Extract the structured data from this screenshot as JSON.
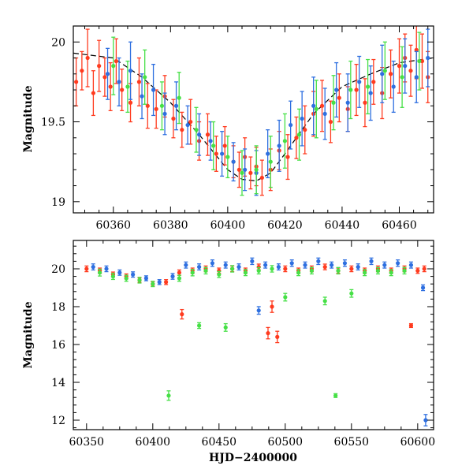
{
  "chart_data": [
    {
      "type": "scatter",
      "panel": "top",
      "xlabel": "",
      "ylabel": "Magnitude",
      "xlim": [
        60346,
        60472
      ],
      "ylim": [
        20.1,
        18.93
      ],
      "y_inverted": true,
      "x_ticks": [
        60360,
        60380,
        60400,
        60420,
        60440,
        60460
      ],
      "x_tick_labels": [
        "60360",
        "60380",
        "60400",
        "60420",
        "60440",
        "60460"
      ],
      "y_ticks": [
        19,
        19.5,
        20
      ],
      "y_tick_labels": [
        "19",
        "19.5",
        "20"
      ],
      "grid": false,
      "legend": "none",
      "model_curve": {
        "style": "dashed",
        "color": "#000000",
        "x": [
          60346,
          60360,
          60370,
          60380,
          60390,
          60400,
          60405,
          60410,
          60415,
          60420,
          60430,
          60440,
          60450,
          60460,
          60472
        ],
        "y": [
          19.93,
          19.9,
          19.78,
          19.62,
          19.42,
          19.2,
          19.14,
          19.13,
          19.18,
          19.3,
          19.55,
          19.72,
          19.8,
          19.87,
          19.9
        ]
      },
      "series": [
        {
          "color": "#ff3b1f",
          "x": [
            60347,
            60349,
            60351,
            60353,
            60355,
            60357,
            60359,
            60361,
            60363,
            60366,
            60369,
            60372,
            60375,
            60378,
            60381,
            60384,
            60387,
            60390,
            60393,
            60396,
            60399,
            60402,
            60404,
            60406,
            60408,
            60410,
            60412,
            60415,
            60418,
            60421,
            60424,
            60427,
            60430,
            60433,
            60436,
            60439,
            60442,
            60445,
            60448,
            60451,
            60454,
            60457,
            60460,
            60462,
            60464,
            60466,
            60468,
            60470
          ],
          "y": [
            19.75,
            19.82,
            19.9,
            19.68,
            19.85,
            19.78,
            19.72,
            19.88,
            19.7,
            19.62,
            19.75,
            19.6,
            19.58,
            19.66,
            19.52,
            19.45,
            19.5,
            19.38,
            19.42,
            19.3,
            19.35,
            19.25,
            19.2,
            19.28,
            19.18,
            19.22,
            19.15,
            19.2,
            19.32,
            19.28,
            19.4,
            19.45,
            19.55,
            19.6,
            19.5,
            19.65,
            19.58,
            19.7,
            19.62,
            19.75,
            19.68,
            19.8,
            19.85,
            19.9,
            19.82,
            19.95,
            19.88,
            19.78
          ],
          "err": [
            0.15,
            0.12,
            0.18,
            0.14,
            0.16,
            0.12,
            0.15,
            0.14,
            0.13,
            0.12,
            0.15,
            0.14,
            0.12,
            0.13,
            0.12,
            0.11,
            0.14,
            0.12,
            0.13,
            0.11,
            0.12,
            0.1,
            0.11,
            0.12,
            0.1,
            0.12,
            0.11,
            0.13,
            0.12,
            0.14,
            0.13,
            0.15,
            0.14,
            0.16,
            0.13,
            0.15,
            0.14,
            0.16,
            0.15,
            0.14,
            0.16,
            0.15,
            0.17,
            0.15,
            0.16,
            0.18,
            0.17,
            0.16
          ]
        },
        {
          "color": "#2e6fe0",
          "x": [
            60358,
            60362,
            60366,
            60370,
            60374,
            60378,
            60382,
            60386,
            60390,
            60394,
            60398,
            60402,
            60406,
            60410,
            60414,
            60418,
            60422,
            60426,
            60430,
            60434,
            60438,
            60442,
            60446,
            60450,
            60454,
            60458,
            60462,
            60466,
            60470
          ],
          "y": [
            19.8,
            19.75,
            19.82,
            19.66,
            19.7,
            19.55,
            19.6,
            19.48,
            19.42,
            19.38,
            19.3,
            19.25,
            19.2,
            19.18,
            19.3,
            19.35,
            19.48,
            19.52,
            19.6,
            19.55,
            19.7,
            19.62,
            19.75,
            19.68,
            19.8,
            19.72,
            19.85,
            19.78,
            19.9
          ],
          "err": [
            0.16,
            0.15,
            0.18,
            0.14,
            0.16,
            0.13,
            0.15,
            0.12,
            0.13,
            0.12,
            0.14,
            0.12,
            0.13,
            0.14,
            0.15,
            0.16,
            0.15,
            0.17,
            0.18,
            0.16,
            0.17,
            0.18,
            0.16,
            0.17,
            0.18,
            0.16,
            0.17,
            0.16,
            0.18
          ]
        },
        {
          "color": "#46e046",
          "x": [
            60360,
            60365,
            60371,
            60377,
            60383,
            60389,
            60395,
            60400,
            60405,
            60410,
            60415,
            60420,
            60425,
            60431,
            60437,
            60443,
            60449,
            60455,
            60461,
            60467
          ],
          "y": [
            19.85,
            19.72,
            19.78,
            19.6,
            19.65,
            19.45,
            19.35,
            19.28,
            19.18,
            19.2,
            19.25,
            19.38,
            19.42,
            19.58,
            19.62,
            19.7,
            19.72,
            19.82,
            19.78,
            19.88
          ],
          "err": [
            0.18,
            0.16,
            0.17,
            0.15,
            0.16,
            0.14,
            0.15,
            0.13,
            0.14,
            0.15,
            0.16,
            0.17,
            0.16,
            0.18,
            0.17,
            0.18,
            0.17,
            0.18,
            0.19,
            0.18
          ]
        }
      ]
    },
    {
      "type": "scatter",
      "panel": "bottom",
      "xlabel": "HJD−2400000",
      "ylabel": "Magnitude",
      "xlim": [
        60340,
        60612
      ],
      "ylim": [
        21.5,
        11.5
      ],
      "y_inverted": true,
      "x_ticks": [
        60350,
        60400,
        60450,
        60500,
        60550,
        60600
      ],
      "x_tick_labels": [
        "60350",
        "60400",
        "60450",
        "60500",
        "60550",
        "60600"
      ],
      "y_ticks": [
        12,
        14,
        16,
        18,
        20
      ],
      "y_tick_labels": [
        "12",
        "14",
        "16",
        "18",
        "20"
      ],
      "grid": false,
      "legend": "none",
      "series": [
        {
          "color": "#ff3b1f",
          "x": [
            60350,
            60360,
            60370,
            60380,
            60390,
            60400,
            60410,
            60420,
            60422,
            60430,
            60440,
            60450,
            60460,
            60470,
            60480,
            60487,
            60490,
            60494,
            60500,
            60510,
            60520,
            60530,
            60540,
            60550,
            60560,
            60570,
            60580,
            60590,
            60595,
            60600,
            60605
          ],
          "y": [
            20.0,
            19.9,
            19.7,
            19.6,
            19.4,
            19.2,
            19.3,
            19.8,
            17.6,
            19.9,
            20.0,
            19.9,
            20.0,
            19.9,
            20.1,
            16.6,
            18.0,
            16.4,
            20.0,
            19.9,
            20.0,
            20.1,
            19.9,
            20.0,
            19.9,
            20.0,
            19.9,
            20.0,
            17.0,
            19.9,
            20.0
          ],
          "err": [
            0.15,
            0.14,
            0.13,
            0.13,
            0.12,
            0.12,
            0.13,
            0.14,
            0.25,
            0.14,
            0.15,
            0.14,
            0.15,
            0.14,
            0.15,
            0.3,
            0.3,
            0.3,
            0.15,
            0.14,
            0.15,
            0.15,
            0.14,
            0.15,
            0.14,
            0.15,
            0.14,
            0.15,
            0.1,
            0.14,
            0.15
          ]
        },
        {
          "color": "#2e6fe0",
          "x": [
            60355,
            60365,
            60375,
            60385,
            60395,
            60405,
            60415,
            60425,
            60435,
            60445,
            60455,
            60465,
            60475,
            60480,
            60485,
            60495,
            60505,
            60515,
            60525,
            60535,
            60545,
            60555,
            60565,
            60575,
            60585,
            60595,
            60604,
            60606
          ],
          "y": [
            20.1,
            20.0,
            19.8,
            19.7,
            19.5,
            19.3,
            19.6,
            20.2,
            20.1,
            20.3,
            20.2,
            20.1,
            20.4,
            17.8,
            20.2,
            20.1,
            20.3,
            20.2,
            20.4,
            20.2,
            20.3,
            20.1,
            20.4,
            20.2,
            20.3,
            20.2,
            19.0,
            12.0
          ],
          "err": [
            0.16,
            0.15,
            0.14,
            0.14,
            0.13,
            0.13,
            0.15,
            0.16,
            0.16,
            0.17,
            0.16,
            0.16,
            0.17,
            0.2,
            0.16,
            0.16,
            0.17,
            0.16,
            0.17,
            0.16,
            0.17,
            0.16,
            0.17,
            0.16,
            0.17,
            0.16,
            0.15,
            0.3
          ]
        },
        {
          "color": "#46e046",
          "x": [
            60360,
            60370,
            60380,
            60390,
            60400,
            60412,
            60420,
            60430,
            60435,
            60440,
            60450,
            60455,
            60460,
            60470,
            60480,
            60490,
            60500,
            60510,
            60520,
            60530,
            60538,
            60540,
            60550,
            60560,
            60570,
            60580,
            60590
          ],
          "y": [
            19.8,
            19.6,
            19.5,
            19.4,
            19.2,
            13.3,
            19.5,
            19.8,
            17.0,
            19.9,
            19.7,
            16.9,
            20.0,
            19.8,
            19.9,
            20.0,
            18.5,
            19.8,
            19.9,
            18.3,
            13.3,
            19.9,
            18.7,
            19.8,
            19.9,
            19.8,
            19.9
          ],
          "err": [
            0.18,
            0.16,
            0.16,
            0.15,
            0.14,
            0.25,
            0.16,
            0.17,
            0.15,
            0.17,
            0.16,
            0.2,
            0.17,
            0.16,
            0.17,
            0.17,
            0.2,
            0.16,
            0.17,
            0.2,
            0.1,
            0.17,
            0.2,
            0.16,
            0.17,
            0.16,
            0.17
          ]
        }
      ]
    }
  ]
}
